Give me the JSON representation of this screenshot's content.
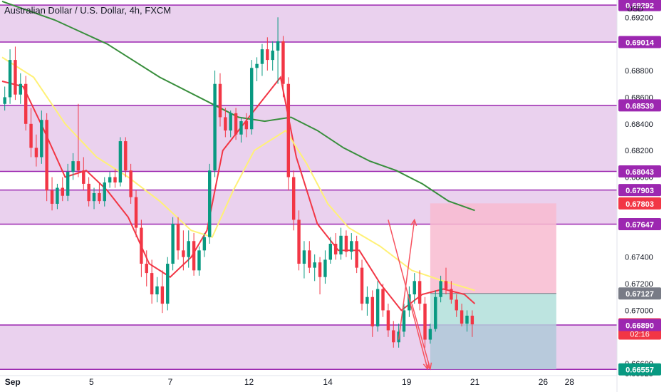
{
  "title": "Australian Dollar / U.S. Dollar, 4h, FXCM",
  "currency": "USD",
  "colors": {
    "up": "#089981",
    "down": "#f23645",
    "zone_fill": "#e1bee7",
    "zone_line": "#9c27b0",
    "ma_fast": "#f23645",
    "ma_mid": "#fff176",
    "ma_slow": "#388e3c",
    "arrow": "#f7525f",
    "stop_fill": "#f8bbd0",
    "target_fill": "#b2dfdb",
    "target_fill_lower": "#b3c9d9",
    "price_tag": "#f23645",
    "tag_purple": "#9c27b0",
    "tag_gray": "#787b86",
    "tag_green": "#089981"
  },
  "chart_data": {
    "type": "candlestick",
    "title": "Australian Dollar / U.S. Dollar, 4h, FXCM",
    "ylim": [
      0.6651,
      0.6933
    ],
    "xlim": [
      0,
      110
    ],
    "x_ticks": [
      {
        "x": 2,
        "label": "Sep"
      },
      {
        "x": 17,
        "label": "5"
      },
      {
        "x": 32,
        "label": "7"
      },
      {
        "x": 47,
        "label": "12"
      },
      {
        "x": 62,
        "label": "14"
      },
      {
        "x": 77,
        "label": "19"
      },
      {
        "x": 90,
        "label": "21"
      },
      {
        "x": 103,
        "label": "26"
      },
      {
        "x": 108,
        "label": "28"
      }
    ],
    "y_ticks": [
      {
        "v": 0.692,
        "label": "0.69200"
      },
      {
        "v": 0.688,
        "label": "0.68800"
      },
      {
        "v": 0.686,
        "label": "0.68600"
      },
      {
        "v": 0.684,
        "label": "0.68400"
      },
      {
        "v": 0.682,
        "label": "0.68200"
      },
      {
        "v": 0.68,
        "label": "0.68000"
      },
      {
        "v": 0.674,
        "label": "0.67400"
      },
      {
        "v": 0.672,
        "label": "0.67200"
      },
      {
        "v": 0.67,
        "label": "0.67000"
      },
      {
        "v": 0.666,
        "label": "0.66600"
      },
      {
        "v": 0.66525,
        "label": "0.66525"
      }
    ],
    "zones": [
      {
        "from": 0.69014,
        "to": 0.69292
      },
      {
        "from": 0.68043,
        "to": 0.68539
      },
      {
        "from": 0.67647,
        "to": 0.67903
      },
      {
        "from": 0.66557,
        "to": 0.6689
      }
    ],
    "level_lines": [
      0.69292,
      0.69014,
      0.68539,
      0.68043,
      0.67903,
      0.67647,
      0.6689,
      0.66557
    ],
    "price_tags": [
      {
        "label": "0.69292",
        "v": 0.69292,
        "color": "#9c27b0"
      },
      {
        "label": "0.69014",
        "v": 0.69014,
        "color": "#9c27b0"
      },
      {
        "label": "0.68539",
        "v": 0.68539,
        "color": "#9c27b0"
      },
      {
        "label": "0.68043",
        "v": 0.68043,
        "color": "#9c27b0"
      },
      {
        "label": "0.67903",
        "v": 0.67903,
        "color": "#9c27b0"
      },
      {
        "label": "0.67803",
        "v": 0.67803,
        "color": "#f23645"
      },
      {
        "label": "0.67647",
        "v": 0.67647,
        "color": "#9c27b0"
      },
      {
        "label": "0.67127",
        "v": 0.67127,
        "color": "#787b86"
      },
      {
        "label": "0.66895",
        "v": 0.66895,
        "color": "#f23645",
        "sub": "02:16"
      },
      {
        "label": "0.66890",
        "v": 0.6689,
        "color": "#9c27b0"
      },
      {
        "label": "0.66557",
        "v": 0.66557,
        "color": "#089981"
      }
    ],
    "position": {
      "x_start": 81.5,
      "x_end": 105.5,
      "stop": 0.67803,
      "entry": 0.67127,
      "target": 0.66557,
      "current": 0.66895
    },
    "arrows": [
      {
        "x1": 75.5,
        "y1": 0.6678,
        "x2": 78.5,
        "y2": 0.6768
      },
      {
        "x1": 73.5,
        "y1": 0.6768,
        "x2": 81,
        "y2": 0.6656
      },
      {
        "x1": 78,
        "y1": 0.6705,
        "x2": 81.5,
        "y2": 0.6656
      }
    ],
    "series": [
      {
        "type": "candles",
        "ohlc": [
          [
            0.6855,
            0.6868,
            0.685,
            0.686
          ],
          [
            0.686,
            0.6896,
            0.6855,
            0.6888
          ],
          [
            0.6888,
            0.6898,
            0.6858,
            0.6862
          ],
          [
            0.6862,
            0.6878,
            0.6855,
            0.687
          ],
          [
            0.687,
            0.6876,
            0.6835,
            0.684
          ],
          [
            0.684,
            0.6852,
            0.6815,
            0.6822
          ],
          [
            0.6822,
            0.6832,
            0.6808,
            0.6815
          ],
          [
            0.6815,
            0.685,
            0.681,
            0.6843
          ],
          [
            0.6843,
            0.6848,
            0.6782,
            0.679
          ],
          [
            0.679,
            0.68,
            0.6775,
            0.678
          ],
          [
            0.678,
            0.6795,
            0.6776,
            0.6792
          ],
          [
            0.6792,
            0.68,
            0.6782,
            0.6786
          ],
          [
            0.6786,
            0.681,
            0.6782,
            0.6804
          ],
          [
            0.6804,
            0.6818,
            0.6798,
            0.6812
          ],
          [
            0.6812,
            0.6855,
            0.68,
            0.6805
          ],
          [
            0.6805,
            0.6815,
            0.679,
            0.6795
          ],
          [
            0.6795,
            0.68,
            0.6778,
            0.6782
          ],
          [
            0.6782,
            0.6792,
            0.6776,
            0.6788
          ],
          [
            0.6788,
            0.6796,
            0.678,
            0.6782
          ],
          [
            0.6782,
            0.68,
            0.6778,
            0.6796
          ],
          [
            0.6796,
            0.6804,
            0.6792,
            0.68
          ],
          [
            0.68,
            0.6806,
            0.6792,
            0.6796
          ],
          [
            0.6796,
            0.683,
            0.6793,
            0.6827
          ],
          [
            0.6827,
            0.683,
            0.68,
            0.6805
          ],
          [
            0.6805,
            0.681,
            0.678,
            0.6785
          ],
          [
            0.6785,
            0.679,
            0.6755,
            0.6762
          ],
          [
            0.6762,
            0.6768,
            0.6725,
            0.6735
          ],
          [
            0.6735,
            0.6745,
            0.6718,
            0.6728
          ],
          [
            0.6728,
            0.6738,
            0.6705,
            0.6712
          ],
          [
            0.6712,
            0.6725,
            0.6706,
            0.6718
          ],
          [
            0.6718,
            0.673,
            0.6698,
            0.6705
          ],
          [
            0.6705,
            0.674,
            0.67,
            0.6735
          ],
          [
            0.6735,
            0.677,
            0.673,
            0.6765
          ],
          [
            0.6765,
            0.677,
            0.6738,
            0.6745
          ],
          [
            0.6745,
            0.676,
            0.673,
            0.674
          ],
          [
            0.674,
            0.676,
            0.6732,
            0.6752
          ],
          [
            0.6752,
            0.6758,
            0.6726,
            0.673
          ],
          [
            0.673,
            0.6748,
            0.6726,
            0.6745
          ],
          [
            0.6745,
            0.6758,
            0.674,
            0.6755
          ],
          [
            0.6755,
            0.681,
            0.675,
            0.6805
          ],
          [
            0.6805,
            0.688,
            0.68,
            0.687
          ],
          [
            0.687,
            0.6878,
            0.6838,
            0.6845
          ],
          [
            0.6845,
            0.6852,
            0.683,
            0.6835
          ],
          [
            0.6835,
            0.685,
            0.683,
            0.6848
          ],
          [
            0.6848,
            0.6852,
            0.6828,
            0.6832
          ],
          [
            0.6832,
            0.6845,
            0.6826,
            0.6842
          ],
          [
            0.6842,
            0.6848,
            0.683,
            0.6836
          ],
          [
            0.6836,
            0.6888,
            0.6832,
            0.6882
          ],
          [
            0.6882,
            0.689,
            0.6872,
            0.6885
          ],
          [
            0.6885,
            0.69,
            0.6876,
            0.6896
          ],
          [
            0.6896,
            0.6905,
            0.688,
            0.6888
          ],
          [
            0.6888,
            0.6902,
            0.688,
            0.6895
          ],
          [
            0.6895,
            0.692,
            0.687,
            0.6902
          ],
          [
            0.6902,
            0.6906,
            0.686,
            0.687
          ],
          [
            0.687,
            0.6875,
            0.679,
            0.68
          ],
          [
            0.68,
            0.6805,
            0.676,
            0.6768
          ],
          [
            0.6768,
            0.6775,
            0.673,
            0.6735
          ],
          [
            0.6735,
            0.6752,
            0.6724,
            0.6745
          ],
          [
            0.6745,
            0.6752,
            0.6728,
            0.6732
          ],
          [
            0.6732,
            0.6742,
            0.6722,
            0.6736
          ],
          [
            0.6736,
            0.674,
            0.6712,
            0.6725
          ],
          [
            0.6725,
            0.6745,
            0.672,
            0.6738
          ],
          [
            0.6738,
            0.6755,
            0.6735,
            0.675
          ],
          [
            0.675,
            0.6758,
            0.6738,
            0.6742
          ],
          [
            0.6742,
            0.6762,
            0.6738,
            0.6756
          ],
          [
            0.6756,
            0.676,
            0.674,
            0.6744
          ],
          [
            0.6744,
            0.6758,
            0.6738,
            0.6752
          ],
          [
            0.6752,
            0.6756,
            0.6728,
            0.6732
          ],
          [
            0.6732,
            0.6738,
            0.67,
            0.6705
          ],
          [
            0.6705,
            0.6718,
            0.6696,
            0.671
          ],
          [
            0.671,
            0.6715,
            0.668,
            0.6688
          ],
          [
            0.6688,
            0.6722,
            0.6684,
            0.6716
          ],
          [
            0.6716,
            0.672,
            0.6695,
            0.67
          ],
          [
            0.67,
            0.6705,
            0.668,
            0.6685
          ],
          [
            0.6685,
            0.6692,
            0.6672,
            0.6676
          ],
          [
            0.6676,
            0.669,
            0.6672,
            0.6684
          ],
          [
            0.6684,
            0.6705,
            0.668,
            0.67
          ],
          [
            0.67,
            0.6718,
            0.6695,
            0.6712
          ],
          [
            0.6712,
            0.6728,
            0.6705,
            0.6722
          ],
          [
            0.6722,
            0.673,
            0.67,
            0.6705
          ],
          [
            0.6705,
            0.671,
            0.6672,
            0.6678
          ],
          [
            0.6678,
            0.669,
            0.6675,
            0.6686
          ],
          [
            0.6686,
            0.6715,
            0.6684,
            0.671
          ],
          [
            0.671,
            0.6726,
            0.6706,
            0.6722
          ],
          [
            0.6722,
            0.6732,
            0.6712,
            0.6716
          ],
          [
            0.6716,
            0.6722,
            0.6705,
            0.6708
          ],
          [
            0.6708,
            0.6712,
            0.6695,
            0.67
          ],
          [
            0.67,
            0.6705,
            0.6688,
            0.669
          ],
          [
            0.669,
            0.67,
            0.6684,
            0.6696
          ],
          [
            0.6696,
            0.67,
            0.668,
            0.66895
          ]
        ]
      },
      {
        "type": "line",
        "role": "ma_fast",
        "points": [
          [
            0,
            0.6872
          ],
          [
            4,
            0.6868
          ],
          [
            8,
            0.6835
          ],
          [
            12,
            0.68
          ],
          [
            16,
            0.6805
          ],
          [
            20,
            0.679
          ],
          [
            24,
            0.677
          ],
          [
            28,
            0.6735
          ],
          [
            32,
            0.6725
          ],
          [
            36,
            0.674
          ],
          [
            39,
            0.676
          ],
          [
            42,
            0.682
          ],
          [
            46,
            0.684
          ],
          [
            50,
            0.686
          ],
          [
            53,
            0.6875
          ],
          [
            56,
            0.6815
          ],
          [
            60,
            0.6765
          ],
          [
            64,
            0.6745
          ],
          [
            68,
            0.6745
          ],
          [
            72,
            0.672
          ],
          [
            76,
            0.67
          ],
          [
            80,
            0.6712
          ],
          [
            84,
            0.6716
          ],
          [
            88,
            0.6712
          ],
          [
            90,
            0.6705
          ]
        ]
      },
      {
        "type": "line",
        "role": "ma_mid",
        "points": [
          [
            0,
            0.689
          ],
          [
            6,
            0.6875
          ],
          [
            12,
            0.684
          ],
          [
            18,
            0.6815
          ],
          [
            24,
            0.68
          ],
          [
            30,
            0.6782
          ],
          [
            36,
            0.676
          ],
          [
            40,
            0.6755
          ],
          [
            44,
            0.679
          ],
          [
            48,
            0.682
          ],
          [
            54,
            0.6835
          ],
          [
            58,
            0.681
          ],
          [
            62,
            0.678
          ],
          [
            66,
            0.6762
          ],
          [
            72,
            0.6748
          ],
          [
            78,
            0.673
          ],
          [
            84,
            0.6722
          ],
          [
            90,
            0.6715
          ]
        ]
      },
      {
        "type": "line",
        "role": "ma_slow",
        "points": [
          [
            0,
            0.6932
          ],
          [
            10,
            0.6918
          ],
          [
            20,
            0.69
          ],
          [
            30,
            0.6875
          ],
          [
            40,
            0.6855
          ],
          [
            45,
            0.6845
          ],
          [
            50,
            0.6842
          ],
          [
            55,
            0.6845
          ],
          [
            60,
            0.6835
          ],
          [
            65,
            0.6822
          ],
          [
            70,
            0.6812
          ],
          [
            75,
            0.6805
          ],
          [
            80,
            0.6795
          ],
          [
            85,
            0.6782
          ],
          [
            90,
            0.6775
          ]
        ]
      }
    ]
  }
}
